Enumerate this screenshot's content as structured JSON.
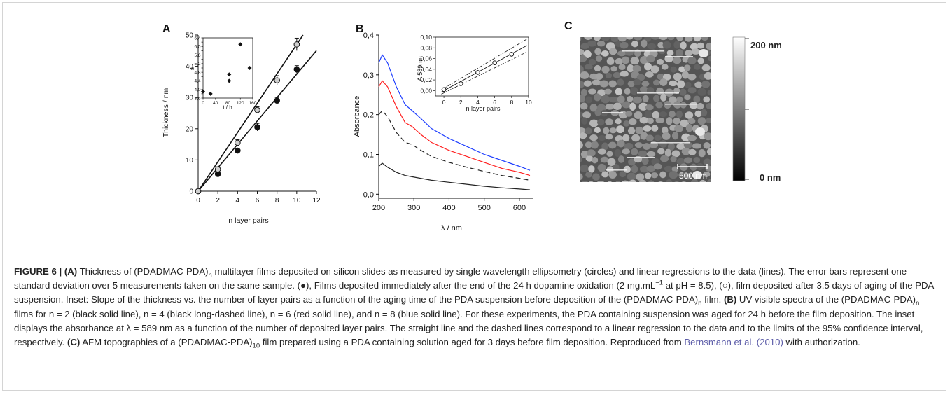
{
  "figure": {
    "panels": {
      "A": {
        "label": "A",
        "y_axis_label": "Thickness / nm",
        "x_axis_label": "n layer pairs",
        "inset": {
          "y_label": "s",
          "x_label": "t / h"
        }
      },
      "B": {
        "label": "B",
        "y_axis_label": "Absorbance",
        "x_axis_label": "λ / nm",
        "inset": {
          "y_label": "A 589nm",
          "x_label": "n layer pairs"
        }
      },
      "C": {
        "label": "C",
        "scalebar_label": "500 nm",
        "colorbar_top": "200 nm",
        "colorbar_bottom": "0 nm"
      }
    },
    "caption": {
      "fig_label": "FIGURE 6 |",
      "a_tag": "(A)",
      "a_1": " Thickness of (PDADMAC-PDA)",
      "a_sub1": "n",
      "a_2": " multilayer films deposited on silicon slides as measured by single wavelength ellipsometry (circles) and linear regressions to the data (lines). The error bars represent one standard deviation over 5 measurements taken on the same sample. (●), Films deposited immediately after the end of the 24 h dopamine oxidation (2 mg.mL",
      "a_sup": "−1",
      "a_3": " at pH = 8.5), (○), film deposited after 3.5 days of aging of the PDA suspension. Inset: Slope of the thickness vs. the number of layer pairs as a function of the aging time of the PDA suspension before deposition of the (PDADMAC-PDA)",
      "a_sub2": "n",
      "a_4": " film. ",
      "b_tag": "(B)",
      "b_1": " UV-visible spectra of the (PDADMAC-PDA)",
      "b_sub": "n",
      "b_2": " films for n = 2 (black solid line), n = 4 (black long-dashed line), n = 6 (red solid line), and n = 8 (blue solid line). For these experiments, the PDA containing suspension was aged for 24 h before the film deposition. The inset displays the absorbance at λ = 589 nm as a function of the number of deposited layer pairs. The straight line and the dashed lines correspond to a linear regression to the data and to the limits of the 95% confidence interval, respectively. ",
      "c_tag": "(C)",
      "c_1": " AFM topographies of a (PDADMAC-PDA)",
      "c_sub": "10",
      "c_2": " film prepared using a PDA containing solution aged for 3 days before film deposition. Reproduced from ",
      "ref": "Bernsmann et al. (2010)",
      "c_3": " with authorization."
    }
  },
  "chart_data": [
    {
      "panel": "A",
      "type": "scatter",
      "xlabel": "n layer pairs",
      "ylabel": "Thickness / nm",
      "xlim": [
        0,
        12
      ],
      "ylim": [
        0,
        50
      ],
      "xticks": [
        0,
        2,
        4,
        6,
        8,
        10,
        12
      ],
      "yticks": [
        0,
        10,
        20,
        30,
        40,
        50
      ],
      "series": [
        {
          "marker": "filled",
          "x": [
            0,
            2,
            4,
            6,
            8,
            10
          ],
          "y": [
            0,
            5.5,
            13,
            20.5,
            29,
            39
          ],
          "err": [
            0.5,
            0.6,
            0.6,
            1.2,
            1.0,
            1.2
          ]
        },
        {
          "marker": "open",
          "x": [
            0,
            2,
            4,
            6,
            8,
            10
          ],
          "y": [
            0,
            7,
            15.5,
            26,
            35.5,
            47
          ],
          "err": [
            0.5,
            0.8,
            1.0,
            1.0,
            1.5,
            2.0
          ]
        }
      ],
      "fits": [
        {
          "slope": 3.75
        },
        {
          "slope": 4.7
        }
      ]
    },
    {
      "panel": "A-inset",
      "type": "scatter",
      "xlabel": "t / h",
      "ylabel": "s",
      "xlim": [
        0,
        160
      ],
      "ylim": [
        3.6,
        6.4
      ],
      "xticks": [
        0,
        40,
        80,
        120,
        160
      ],
      "yticks": [
        3.6,
        3.8,
        4.0,
        4.2,
        4.4,
        4.6,
        4.8,
        5.0,
        5.2,
        5.4,
        5.6,
        5.8,
        6.0,
        6.2,
        6.4
      ],
      "ytick_labels": [
        "3,6",
        "",
        "4,0",
        "",
        "4,4",
        "",
        "4,8",
        "",
        "5,2",
        "",
        "5,6",
        "",
        "6,0",
        "",
        "6,4"
      ],
      "x": [
        0,
        24,
        84,
        84,
        120,
        150
      ],
      "y": [
        3.9,
        3.8,
        4.4,
        4.7,
        6.1,
        5.0
      ]
    },
    {
      "panel": "B",
      "type": "line",
      "xlabel": "λ / nm",
      "ylabel": "Absorbance",
      "xlim": [
        200,
        640
      ],
      "ylim": [
        -0.01,
        0.4
      ],
      "xticks": [
        200,
        300,
        400,
        500,
        600
      ],
      "yticks": [
        0.0,
        0.1,
        0.2,
        0.3,
        0.4
      ],
      "ytick_labels": [
        "0,0",
        "0,1",
        "0,2",
        "0,3",
        "0,4"
      ],
      "series": [
        {
          "n": 8,
          "color": "#1f3fff",
          "style": "solid",
          "x": [
            200,
            210,
            225,
            250,
            275,
            295,
            320,
            350,
            400,
            450,
            500,
            550,
            600,
            630
          ],
          "y": [
            0.33,
            0.35,
            0.33,
            0.27,
            0.225,
            0.21,
            0.19,
            0.165,
            0.14,
            0.12,
            0.1,
            0.085,
            0.07,
            0.06
          ]
        },
        {
          "n": 6,
          "color": "#ff2020",
          "style": "solid",
          "x": [
            200,
            210,
            225,
            250,
            275,
            295,
            320,
            350,
            400,
            450,
            500,
            550,
            600,
            630
          ],
          "y": [
            0.27,
            0.285,
            0.27,
            0.22,
            0.18,
            0.17,
            0.15,
            0.13,
            0.11,
            0.095,
            0.08,
            0.065,
            0.055,
            0.047
          ]
        },
        {
          "n": 4,
          "color": "#222222",
          "style": "dashed",
          "x": [
            200,
            210,
            225,
            250,
            275,
            295,
            320,
            350,
            400,
            450,
            500,
            550,
            600,
            630
          ],
          "y": [
            0.2,
            0.21,
            0.195,
            0.155,
            0.13,
            0.125,
            0.11,
            0.095,
            0.08,
            0.068,
            0.057,
            0.047,
            0.04,
            0.035
          ]
        },
        {
          "n": 2,
          "color": "#222222",
          "style": "solid",
          "x": [
            200,
            210,
            225,
            250,
            275,
            300,
            350,
            400,
            450,
            500,
            550,
            600,
            630
          ],
          "y": [
            0.07,
            0.078,
            0.068,
            0.055,
            0.047,
            0.043,
            0.035,
            0.03,
            0.025,
            0.02,
            0.016,
            0.013,
            0.011
          ]
        }
      ]
    },
    {
      "panel": "B-inset",
      "type": "scatter",
      "xlabel": "n layer pairs",
      "ylabel": "A 589nm",
      "xlim": [
        -1,
        10
      ],
      "ylim": [
        -0.01,
        0.1
      ],
      "xticks": [
        0,
        2,
        4,
        6,
        8,
        10
      ],
      "yticks": [
        0.0,
        0.02,
        0.04,
        0.06,
        0.08,
        0.1
      ],
      "ytick_labels": [
        "0,00",
        "0,02",
        "0,04",
        "0,06",
        "0,08",
        "0,10"
      ],
      "x": [
        0,
        2,
        4,
        6,
        8
      ],
      "y": [
        0.002,
        0.013,
        0.034,
        0.052,
        0.068
      ],
      "fit_slope": 0.0086
    }
  ]
}
